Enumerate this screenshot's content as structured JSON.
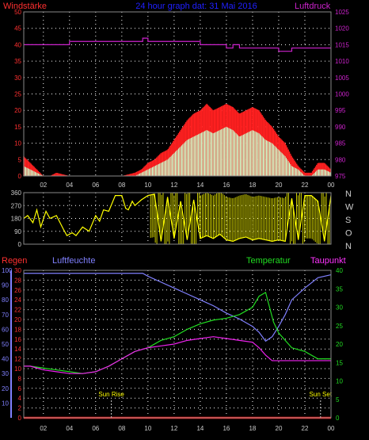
{
  "colors": {
    "wind": "#ff2020",
    "gust": "#ccffcc",
    "pressure": "#cc22cc",
    "winddir": "#ffff00",
    "rain": "#ff2020",
    "humidity": "#8080ff",
    "temperature": "#22dd22",
    "dewpoint": "#ee22ee",
    "grid": "#ffffff",
    "axis_left": "#ff3030",
    "axis_right": "#cc22cc",
    "sun": "#ffff00",
    "title": "#2020ff"
  },
  "chart_data": [
    {
      "type": "bar",
      "title": "24 hour graph dat: 31 Mai 2016",
      "left_label": "Windstärke",
      "right_label": "Luftdruck",
      "x_ticks": [
        "02",
        "04",
        "06",
        "08",
        "10",
        "12",
        "14",
        "16",
        "18",
        "20",
        "22",
        "00"
      ],
      "y_left_ticks": [
        0,
        5,
        10,
        15,
        20,
        25,
        30,
        35,
        40,
        45,
        50
      ],
      "y_right_ticks": [
        975,
        980,
        985,
        990,
        995,
        1000,
        1005,
        1010,
        1015,
        1020,
        1025
      ],
      "ylim_left": [
        0,
        50
      ],
      "ylim_right": [
        975,
        1025
      ],
      "xlim": [
        0.5,
        24
      ],
      "series": [
        {
          "role": "wind",
          "x": [
            0.5,
            1,
            1.5,
            2,
            2.5,
            3,
            4,
            5,
            6,
            7,
            8,
            9,
            9.5,
            10,
            10.5,
            11,
            11.5,
            12,
            12.5,
            13,
            13.5,
            14,
            14.5,
            15,
            15.5,
            16,
            16.5,
            17,
            17.5,
            18,
            18.5,
            19,
            19.5,
            20,
            20.5,
            21,
            21.5,
            22,
            22.5,
            23,
            23.5,
            24
          ],
          "values": [
            6,
            4,
            2,
            0,
            0,
            1,
            0,
            0,
            0,
            0,
            0,
            1,
            2,
            4,
            5,
            7,
            8,
            11,
            14,
            17,
            19,
            20,
            22,
            20,
            21,
            22,
            21,
            19,
            20,
            21,
            20,
            17,
            15,
            12,
            10,
            6,
            3,
            1,
            1,
            4,
            4,
            2
          ]
        },
        {
          "role": "gust",
          "x": [
            0.5,
            1,
            1.5,
            2,
            2.5,
            3,
            4,
            5,
            6,
            7,
            8,
            9,
            9.5,
            10,
            10.5,
            11,
            11.5,
            12,
            12.5,
            13,
            13.5,
            14,
            14.5,
            15,
            15.5,
            16,
            16.5,
            17,
            17.5,
            18,
            18.5,
            19,
            19.5,
            20,
            20.5,
            21,
            21.5,
            22,
            22.5,
            23,
            23.5,
            24
          ],
          "values": [
            3,
            2,
            1,
            0,
            0,
            0,
            0,
            0,
            0,
            0,
            0,
            0,
            1,
            2,
            3,
            4,
            5,
            7,
            9,
            11,
            12,
            13,
            14,
            13,
            14,
            15,
            14,
            12,
            13,
            14,
            13,
            11,
            10,
            8,
            6,
            3,
            2,
            0,
            0,
            2,
            2,
            1
          ]
        },
        {
          "role": "pressure",
          "x": [
            0.5,
            2,
            3.5,
            4,
            4.5,
            6,
            8,
            9.5,
            9.6,
            10,
            10.5,
            11,
            12,
            13,
            14,
            15,
            16,
            16.5,
            17,
            17.5,
            18,
            19,
            20,
            20.5,
            21,
            22,
            23,
            24
          ],
          "values": [
            1015,
            1015,
            1015,
            1016,
            1016,
            1016,
            1016,
            1016,
            1017,
            1016,
            1016,
            1016,
            1016,
            1016,
            1015,
            1015,
            1014,
            1015,
            1014,
            1014,
            1014,
            1014,
            1013,
            1013,
            1014,
            1014,
            1014,
            1014
          ]
        }
      ]
    },
    {
      "type": "line",
      "y_ticks": [
        0,
        90,
        180,
        270,
        360
      ],
      "right_labels": [
        "N",
        "W",
        "S",
        "O",
        "N"
      ],
      "ylim": [
        0,
        360
      ],
      "series": [
        {
          "role": "winddir",
          "x": [
            0.5,
            0.8,
            1.2,
            1.5,
            1.8,
            2.2,
            2.5,
            3,
            3.5,
            3.8,
            4.2,
            4.5,
            5,
            5.5,
            6,
            6.3,
            6.6,
            7,
            7.5,
            8,
            8.3,
            8.5,
            8.8,
            9,
            9.5,
            10,
            10.5,
            11,
            11.5,
            12,
            12.5,
            13,
            13.5,
            14,
            14.5,
            15,
            15.5,
            16,
            16.5,
            17,
            17.5,
            18,
            18.5,
            19,
            19.5,
            20,
            20.5,
            21,
            21.5,
            22,
            22.5,
            23,
            23.5,
            24
          ],
          "values": [
            180,
            200,
            150,
            240,
            120,
            230,
            180,
            200,
            110,
            60,
            80,
            60,
            120,
            90,
            200,
            160,
            240,
            230,
            340,
            340,
            250,
            240,
            300,
            270,
            310,
            340,
            350,
            20,
            330,
            40,
            300,
            30,
            310,
            40,
            60,
            40,
            70,
            30,
            20,
            40,
            50,
            30,
            40,
            30,
            20,
            30,
            20,
            320,
            30,
            340,
            340,
            300,
            20,
            340
          ]
        }
      ]
    },
    {
      "type": "line",
      "left_label": "Regen",
      "left2_label": "Luftfeuchte",
      "right_label": "Temperatur",
      "right2_label": "Taupunkt",
      "y_left_ticks": [
        0,
        2,
        4,
        6,
        8,
        10,
        12,
        14,
        16,
        18,
        20,
        22,
        24,
        26,
        28,
        30
      ],
      "y_humidity_ticks": [
        10,
        20,
        30,
        40,
        50,
        60,
        70,
        80,
        90,
        100
      ],
      "y_right_ticks": [
        0,
        5,
        10,
        15,
        20,
        25,
        30,
        35,
        40
      ],
      "ylim_left": [
        0,
        30
      ],
      "ylim_humidity": [
        0,
        100
      ],
      "ylim_right": [
        0,
        40
      ],
      "annotations": [
        {
          "label": "Sun Rise",
          "x": 7.2
        },
        {
          "label": "Sun Set",
          "x": 23.2
        }
      ],
      "series": [
        {
          "role": "temperature",
          "x": [
            0.5,
            1,
            2,
            3,
            4,
            5,
            6,
            7,
            8,
            9,
            10,
            11,
            12,
            13,
            14,
            15,
            16,
            17,
            18,
            18.5,
            19,
            19.3,
            19.6,
            20,
            20.5,
            21,
            22,
            23,
            24
          ],
          "values": [
            14,
            14,
            13.5,
            13,
            12.5,
            12,
            12.5,
            14,
            16,
            18,
            19,
            21,
            22,
            24,
            25.5,
            26.5,
            27,
            28,
            30,
            33,
            34,
            30,
            26,
            23,
            21,
            19,
            18,
            16,
            16
          ]
        },
        {
          "role": "dewpoint",
          "x": [
            0.5,
            1,
            2,
            3,
            4,
            5,
            6,
            7,
            8,
            9,
            10,
            11,
            12,
            13,
            14,
            15,
            16,
            17,
            18,
            18.5,
            19,
            19.5,
            20,
            21,
            22,
            23,
            24
          ],
          "values": [
            14,
            14,
            13,
            12.5,
            12,
            12,
            12.5,
            14,
            16,
            18,
            19,
            19.5,
            20,
            21,
            21.5,
            22,
            21.5,
            21,
            20.5,
            19,
            17,
            15.5,
            15.5,
            15.5,
            15.5,
            15.5,
            15.5
          ]
        },
        {
          "role": "humidity",
          "x": [
            0.5,
            2,
            4,
            6,
            8,
            9,
            9.6,
            10,
            11,
            12,
            13,
            14,
            15,
            16,
            17,
            18,
            18.5,
            19,
            19.5,
            20,
            20.5,
            21,
            22,
            23,
            24
          ],
          "values": [
            98,
            98,
            98,
            98,
            98,
            98,
            98,
            96,
            92,
            88,
            84,
            80,
            76,
            71,
            67,
            62,
            58,
            52,
            55,
            62,
            70,
            80,
            88,
            95,
            97
          ]
        },
        {
          "role": "rain",
          "x": [
            0.5,
            24
          ],
          "values": [
            0,
            0
          ]
        }
      ]
    }
  ]
}
